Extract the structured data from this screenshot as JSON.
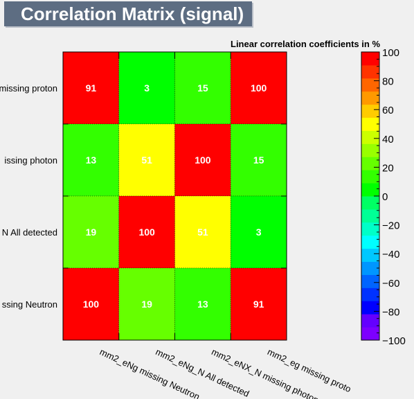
{
  "chart_data": {
    "type": "heatmap",
    "title": "Correlation Matrix (signal)",
    "subtitle": "Linear correlation coefficients in %",
    "x_labels": [
      "mm2_eNg missing Neutron",
      "mm2_eNg_N All detected",
      "mm2_eNX_N missing photon",
      "mm2_eg missing proto"
    ],
    "y_labels_top_to_bottom": [
      "missing proton",
      "issing photon",
      "N All detected",
      "ssing Neutron"
    ],
    "values_top_to_bottom": [
      [
        91,
        3,
        15,
        100
      ],
      [
        13,
        51,
        100,
        15
      ],
      [
        19,
        100,
        51,
        3
      ],
      [
        100,
        19,
        13,
        91
      ]
    ],
    "colorbar": {
      "range": [
        -100,
        100
      ],
      "ticks": [
        100,
        80,
        60,
        40,
        20,
        0,
        -20,
        -40,
        -60,
        -80,
        -100
      ],
      "tick_labels": [
        "100",
        "80",
        "60",
        "40",
        "20",
        "0",
        "−20",
        "−40",
        "−60",
        "−80",
        "−100"
      ],
      "steps_bottom_to_top": [
        "#7d00ff",
        "#6400ff",
        "#0000ff",
        "#0032ff",
        "#0064ff",
        "#0096ff",
        "#00c8ff",
        "#00ffff",
        "#00ffc8",
        "#00ff96",
        "#00ff64",
        "#00ff00",
        "#33ff00",
        "#66ff00",
        "#99ff00",
        "#ccff00",
        "#ffff00",
        "#ffcc00",
        "#ff9900",
        "#ff6600",
        "#ff3300",
        "#ff0000"
      ]
    },
    "cell_label_color": "#ffffff"
  }
}
